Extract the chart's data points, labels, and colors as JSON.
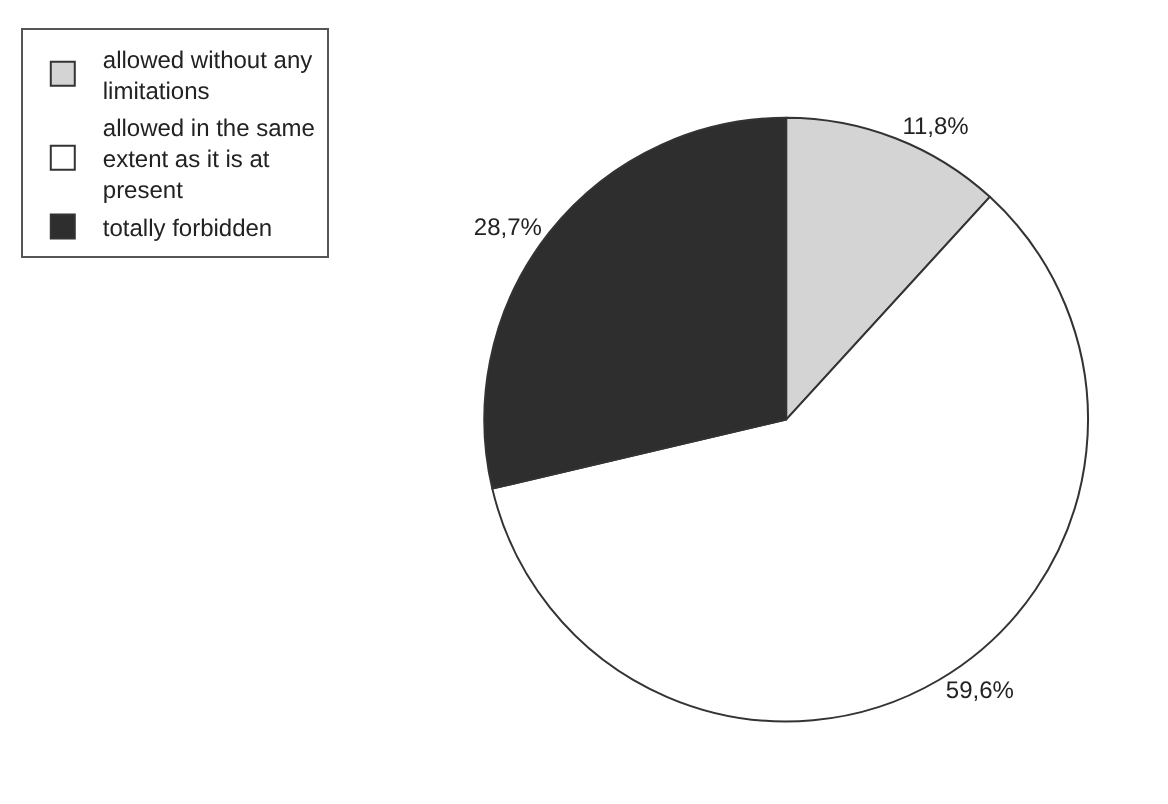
{
  "chart_data": {
    "type": "pie",
    "categories": [
      "allowed without any limitations",
      "allowed in the same extent as it is at present",
      "totally forbidden"
    ],
    "values": [
      11.8,
      59.6,
      28.7
    ],
    "value_labels": [
      "11,8%",
      "59,6%",
      "28,7%"
    ],
    "colors": [
      "#d4d4d4",
      "#ffffff",
      "#2e2e2e"
    ],
    "legend": "top left"
  }
}
